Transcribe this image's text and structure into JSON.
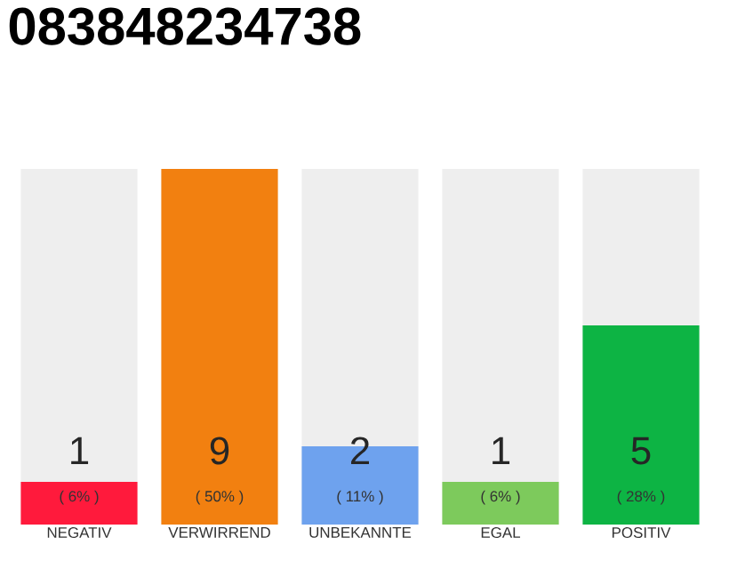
{
  "chart_data": {
    "type": "bar",
    "title": "083848234738",
    "categories": [
      "NEGATIV",
      "VERWIRREND",
      "UNBEKANNTE",
      "EGAL",
      "POSITIV"
    ],
    "values": [
      6,
      50,
      11,
      6,
      28
    ],
    "colors": [
      "#ff1a3c",
      "#f28010",
      "#6ea2ee",
      "#7dca5c",
      "#0db444"
    ],
    "value_labels": [
      "( 6% )",
      "( 50% )",
      "( 11% )",
      "( 6% )",
      "( 28% )"
    ],
    "annotations": [
      "1",
      "9",
      "2",
      "1",
      "5"
    ],
    "ylim": [
      0,
      50
    ]
  }
}
